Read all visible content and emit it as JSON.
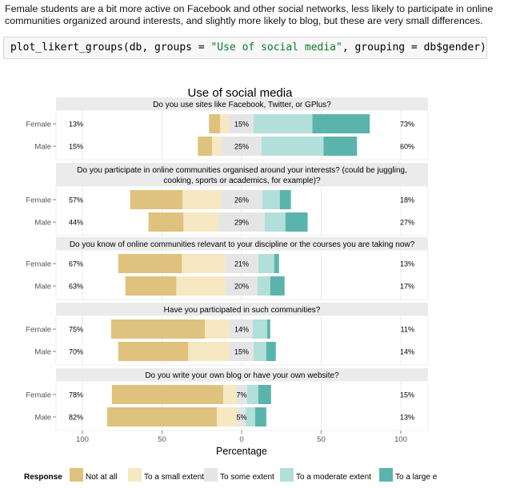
{
  "intro_text": "Female students are a bit more active on Facebook and other social networks, less likely to participate in online communities organized around interests, and slightly more likely to blog, but these are very small differences.",
  "code": {
    "fn": "plot_likert_groups(db, groups ",
    "eq1": "=",
    "str": " \"Use of social media\"",
    "mid": ", grouping ",
    "eq2": "=",
    "end": " db$gender)"
  },
  "colors": {
    "not_at_all": "#dfc27d",
    "small_extent": "#f6e8c3",
    "some_extent": "#e5e5e5",
    "moderate_extent": "#b2dfda",
    "large_extent": "#5ab4ac",
    "strip_bg": "#ebebeb",
    "panel_grid": "#e6e6e6"
  },
  "chart_data": {
    "type": "bar",
    "subtype": "diverging-stacked-likert",
    "title": "Use of social media",
    "xlabel": "Percentage",
    "ylabel": "",
    "xlim": [
      -100,
      100
    ],
    "x_ticks": [
      -100,
      -50,
      0,
      50,
      100
    ],
    "x_tick_labels": [
      "100",
      "50",
      "0",
      "50",
      "100"
    ],
    "grid": true,
    "legend": {
      "title": "Response",
      "position": "bottom",
      "labels": [
        "Not at all",
        "To a small extent",
        "To some extent",
        "To a moderate extent",
        "To a large extent"
      ],
      "visible_labels": [
        "Not at all",
        "To a small extent",
        "To some extent",
        "To a moderate extent",
        "To a large e"
      ]
    },
    "groups": [
      "Female",
      "Male"
    ],
    "panels": [
      {
        "question": "Do you use sites like Facebook, Twitter, or GPlus?",
        "rows": [
          {
            "group": "Female",
            "values": [
              7,
              6,
              15,
              37,
              36
            ],
            "low_label": "13%",
            "neutral_label": "15%",
            "high_label": "73%"
          },
          {
            "group": "Male",
            "values": [
              9,
              6,
              25,
              39,
              21
            ],
            "low_label": "15%",
            "neutral_label": "25%",
            "high_label": "60%"
          }
        ]
      },
      {
        "question": "Do you participate in online communities organised around your interests? (could be juggling, cooking, sports or academics, for example)?",
        "rows": [
          {
            "group": "Female",
            "values": [
              33,
              24,
              26,
              11,
              7
            ],
            "low_label": "57%",
            "neutral_label": "26%",
            "high_label": "18%"
          },
          {
            "group": "Male",
            "values": [
              22,
              22,
              29,
              13,
              14
            ],
            "low_label": "44%",
            "neutral_label": "29%",
            "high_label": "27%"
          }
        ]
      },
      {
        "question": "Do you know of online communities relevant to your discipline or the courses you are taking now?",
        "rows": [
          {
            "group": "Female",
            "values": [
              40,
              27,
              21,
              10,
              3
            ],
            "low_label": "67%",
            "neutral_label": "21%",
            "high_label": "13%"
          },
          {
            "group": "Male",
            "values": [
              32,
              31,
              20,
              8,
              9
            ],
            "low_label": "63%",
            "neutral_label": "20%",
            "high_label": "17%"
          }
        ]
      },
      {
        "question": "Have you participated in such communities?",
        "rows": [
          {
            "group": "Female",
            "values": [
              59,
              16,
              14,
              9,
              2
            ],
            "low_label": "75%",
            "neutral_label": "14%",
            "high_label": "11%"
          },
          {
            "group": "Male",
            "values": [
              44,
              26,
              15,
              8,
              6
            ],
            "low_label": "70%",
            "neutral_label": "15%",
            "high_label": "14%"
          }
        ]
      },
      {
        "question": "Do you write your own blog or have your own website?",
        "rows": [
          {
            "group": "Female",
            "values": [
              70,
              8,
              7,
              7,
              8
            ],
            "low_label": "78%",
            "neutral_label": "7%",
            "high_label": "15%"
          },
          {
            "group": "Male",
            "values": [
              69,
              13,
              5,
              6,
              7
            ],
            "low_label": "82%",
            "neutral_label": "5%",
            "high_label": "13%"
          }
        ]
      }
    ]
  }
}
